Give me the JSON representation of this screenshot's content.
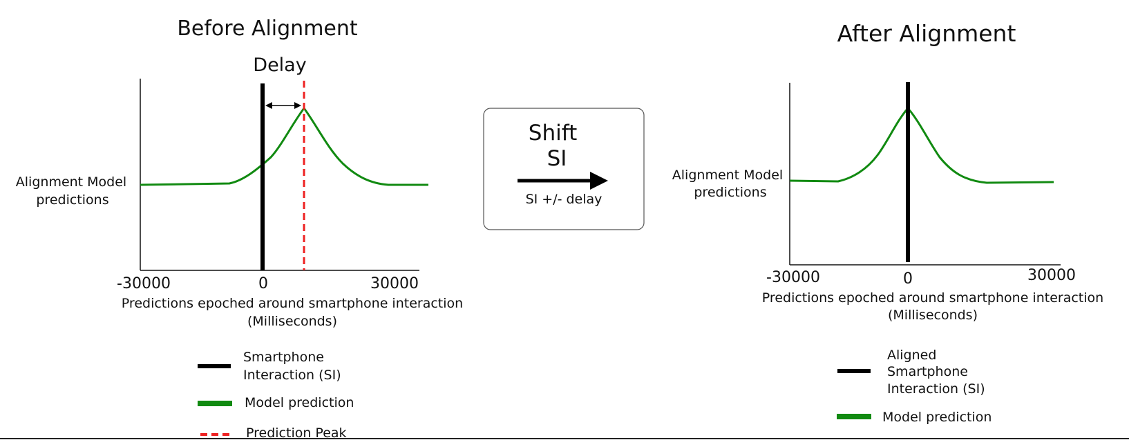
{
  "left_panel": {
    "title": "Before Alignment",
    "delay_label": "Delay",
    "ylabel": [
      "Alignment Model",
      "predictions"
    ],
    "xticks": [
      "-30000",
      "0",
      "30000"
    ],
    "xlabel": [
      "Predictions epoched around smartphone interaction",
      "(Milliseconds)"
    ],
    "legend": [
      {
        "label": [
          "Smartphone",
          "Interaction (SI)"
        ],
        "color": "#000000",
        "style": "solid"
      },
      {
        "label": [
          "Model prediction"
        ],
        "color": "#118a11",
        "style": "solid"
      },
      {
        "label": [
          "Prediction Peak"
        ],
        "color": "#ee2222",
        "style": "dashed"
      }
    ]
  },
  "shift_box": {
    "title": [
      "Shift",
      "SI"
    ],
    "caption": "SI +/- delay"
  },
  "right_panel": {
    "title": "After Alignment",
    "ylabel": [
      "Alignment Model",
      "predictions"
    ],
    "xticks": [
      "-30000",
      "0",
      "30000"
    ],
    "xlabel": [
      "Predictions epoched around smartphone interaction",
      "(Milliseconds)"
    ],
    "legend": [
      {
        "label": [
          "Aligned",
          "Smartphone",
          "Interaction (SI)"
        ],
        "color": "#000000",
        "style": "solid"
      },
      {
        "label": [
          "Model prediction"
        ],
        "color": "#118a11",
        "style": "solid"
      }
    ]
  },
  "colors": {
    "si_line": "#000000",
    "model_curve": "#118a11",
    "peak_line": "#ee2222"
  }
}
